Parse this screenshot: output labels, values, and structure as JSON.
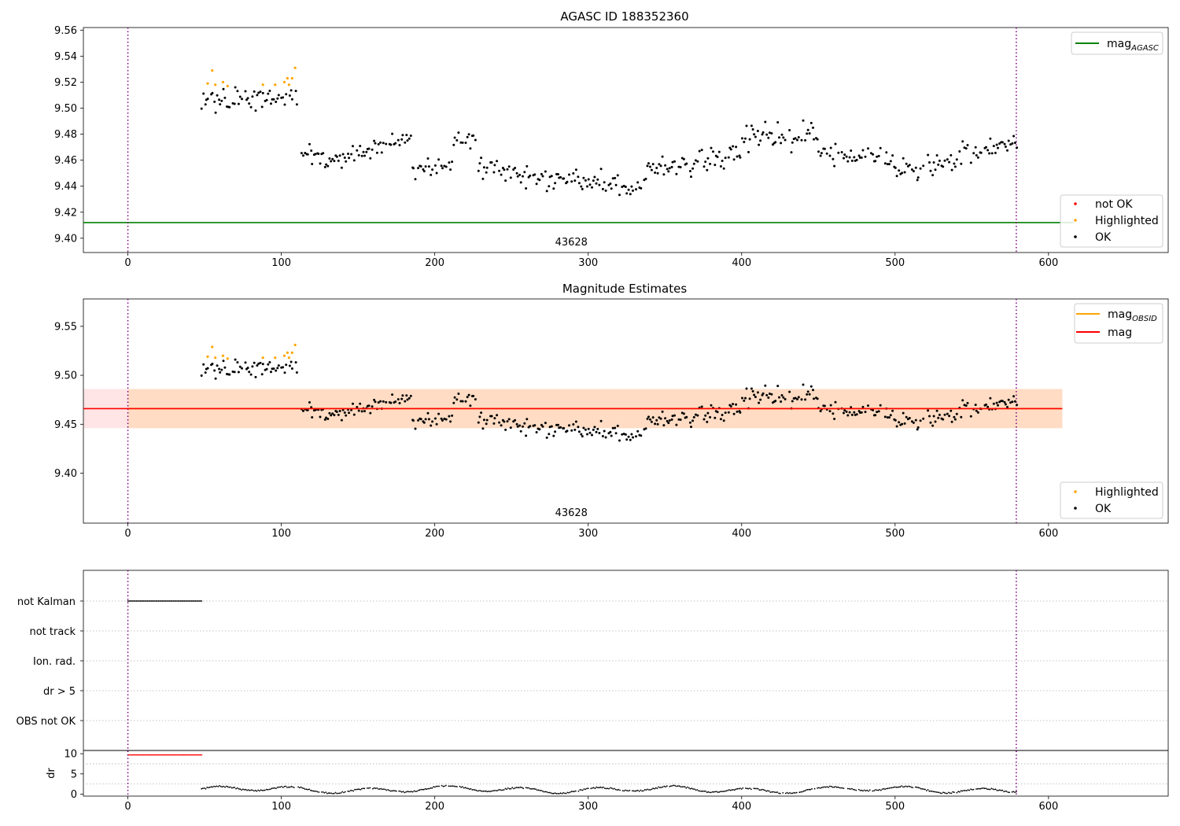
{
  "chart_data": [
    {
      "type": "scatter",
      "title": "AGASC ID 188352360",
      "xlim": [
        -29,
        678
      ],
      "ylim": [
        9.389,
        9.562
      ],
      "x_ticks": [
        0,
        100,
        200,
        300,
        400,
        500,
        600
      ],
      "y_ticks": [
        9.4,
        9.42,
        9.44,
        9.46,
        9.48,
        9.5,
        9.52,
        9.54,
        9.56
      ],
      "y_tick_labels": [
        "9.40",
        "9.42",
        "9.44",
        "9.46",
        "9.48",
        "9.50",
        "9.52",
        "9.54",
        "9.56"
      ],
      "vlines": [
        0,
        579
      ],
      "hline": {
        "name": "mag",
        "subscript": "AGASC",
        "y": 9.412,
        "color": "#008000"
      },
      "obsid_label": {
        "text": "43628",
        "x": 289
      },
      "legend_lines": [
        {
          "name": "mag",
          "subscript": "AGASC",
          "color": "#008000"
        }
      ],
      "legend_markers": [
        {
          "name": "not OK",
          "color": "#ff0000"
        },
        {
          "name": "Highlighted",
          "color": "#ffa500"
        },
        {
          "name": "OK",
          "color": "#000000"
        }
      ],
      "series": [
        {
          "name": "Highlighted",
          "color": "#ffa500",
          "points": [
            [
              52,
              9.519
            ],
            [
              55,
              9.529
            ],
            [
              57,
              9.518
            ],
            [
              62,
              9.52
            ],
            [
              65,
              9.517
            ],
            [
              88,
              9.518
            ],
            [
              96,
              9.518
            ],
            [
              102,
              9.52
            ],
            [
              104,
              9.523
            ],
            [
              105,
              9.518
            ],
            [
              107,
              9.523
            ],
            [
              109,
              9.531
            ]
          ]
        },
        {
          "name": "OK",
          "color": "#000000",
          "segments": [
            {
              "x0": 48,
              "x1": 111,
              "y_start": 9.505,
              "y_end": 9.508,
              "amp": 0.009
            },
            {
              "x0": 111,
              "x1": 140,
              "y_start": 9.465,
              "y_end": 9.46,
              "amp": 0.01
            },
            {
              "x0": 140,
              "x1": 185,
              "y_start": 9.462,
              "y_end": 9.478,
              "amp": 0.009
            },
            {
              "x0": 185,
              "x1": 212,
              "y_start": 9.455,
              "y_end": 9.455,
              "amp": 0.009
            },
            {
              "x0": 212,
              "x1": 228,
              "y_start": 9.478,
              "y_end": 9.472,
              "amp": 0.008
            },
            {
              "x0": 228,
              "x1": 280,
              "y_start": 9.455,
              "y_end": 9.443,
              "amp": 0.01
            },
            {
              "x0": 280,
              "x1": 337,
              "y_start": 9.445,
              "y_end": 9.44,
              "amp": 0.009
            },
            {
              "x0": 337,
              "x1": 400,
              "y_start": 9.452,
              "y_end": 9.465,
              "amp": 0.009
            },
            {
              "x0": 400,
              "x1": 450,
              "y_start": 9.478,
              "y_end": 9.478,
              "amp": 0.01
            },
            {
              "x0": 450,
              "x1": 500,
              "y_start": 9.465,
              "y_end": 9.46,
              "amp": 0.009
            },
            {
              "x0": 500,
              "x1": 540,
              "y_start": 9.452,
              "y_end": 9.46,
              "amp": 0.009
            },
            {
              "x0": 540,
              "x1": 580,
              "y_start": 9.462,
              "y_end": 9.476,
              "amp": 0.01
            }
          ]
        }
      ]
    },
    {
      "type": "scatter",
      "title": "Magnitude Estimates",
      "xlim": [
        -29,
        678
      ],
      "ylim": [
        9.349,
        9.578
      ],
      "x_ticks": [
        0,
        100,
        200,
        300,
        400,
        500,
        600
      ],
      "y_ticks": [
        9.4,
        9.45,
        9.5,
        9.55
      ],
      "y_tick_labels": [
        "9.40",
        "9.45",
        "9.50",
        "9.55"
      ],
      "vlines": [
        0,
        579
      ],
      "mag_line": {
        "name": "mag",
        "y": 9.466,
        "color": "#ff0000",
        "band": [
          9.446,
          9.486
        ],
        "band_x": [
          -29,
          609
        ]
      },
      "obsid_line": {
        "name": "mag",
        "subscript": "OBSID",
        "y": 9.466,
        "color": "#ffa500",
        "band": [
          9.446,
          9.486
        ],
        "band_x": [
          0,
          609
        ]
      },
      "obsid_label": {
        "text": "43628",
        "x": 289
      },
      "legend_lines": [
        {
          "name": "mag",
          "subscript": "OBSID",
          "color": "#ffa500"
        },
        {
          "name": "mag",
          "subscript": "",
          "color": "#ff0000"
        }
      ],
      "legend_markers": [
        {
          "name": "Highlighted",
          "color": "#ffa500"
        },
        {
          "name": "OK",
          "color": "#000000"
        }
      ]
    },
    {
      "type": "scatter",
      "title": "",
      "xlim": [
        -29,
        678
      ],
      "x_ticks": [
        0,
        100,
        200,
        300,
        400,
        500,
        600
      ],
      "vlines": [
        0,
        579
      ],
      "flag_rows": [
        "not Kalman",
        "not track",
        "Ion. rad.",
        "dr > 5",
        "OBS not OK"
      ],
      "flag_data": [
        {
          "row": "not Kalman",
          "x0": 0,
          "x1": 48,
          "color": "#000000"
        }
      ],
      "dr_panel": {
        "ylabel": "dr",
        "ylim": [
          -0.5,
          10.8
        ],
        "y_ticks": [
          0,
          5,
          10
        ],
        "y_tick_labels": [
          "0",
          "5",
          "10"
        ],
        "over_limit": {
          "x0": 0,
          "x1": 48,
          "y": 9.7,
          "color": "#ff0000"
        },
        "series_x": [
          48,
          579
        ]
      }
    }
  ]
}
